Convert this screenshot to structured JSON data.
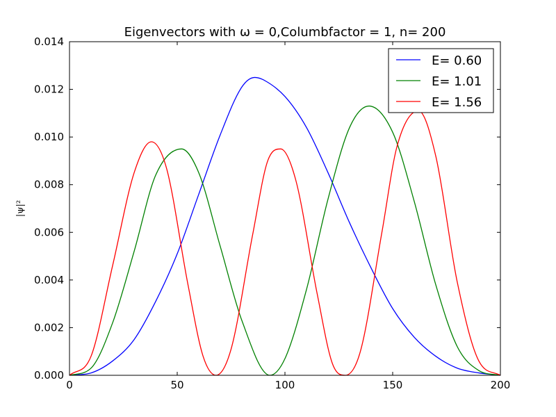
{
  "chart_data": {
    "type": "line",
    "title": "Eigenvectors with ω = 0,Columbfactor = 1, n= 200",
    "xlabel": "",
    "ylabel": "|ψ|²",
    "xlim": [
      0,
      200
    ],
    "ylim": [
      0,
      0.014
    ],
    "x_ticks": [
      "0",
      "50",
      "100",
      "150",
      "200"
    ],
    "y_ticks": [
      "0.000",
      "0.002",
      "0.004",
      "0.006",
      "0.008",
      "0.010",
      "0.012",
      "0.014"
    ],
    "legend_position": "top-right",
    "grid": false,
    "series": [
      {
        "name": "E= 0.60",
        "color": "#0000ff",
        "x": [
          0,
          10,
          20,
          30,
          40,
          50,
          60,
          70,
          80,
          86,
          90,
          100,
          110,
          120,
          130,
          140,
          150,
          160,
          170,
          180,
          190,
          200
        ],
        "y": [
          0,
          0.0001,
          0.0006,
          0.0015,
          0.0031,
          0.0051,
          0.0076,
          0.0101,
          0.0121,
          0.0125,
          0.0124,
          0.0117,
          0.0104,
          0.0085,
          0.0064,
          0.0045,
          0.0028,
          0.0016,
          0.0008,
          0.0003,
          0.0001,
          0
        ]
      },
      {
        "name": "E= 1.01",
        "color": "#008000",
        "x": [
          0,
          10,
          20,
          30,
          40,
          52,
          60,
          70,
          80,
          93,
          100,
          110,
          120,
          130,
          139,
          150,
          160,
          170,
          180,
          190,
          200
        ],
        "y": [
          0,
          0.0003,
          0.0022,
          0.0052,
          0.0084,
          0.0095,
          0.0085,
          0.0054,
          0.0023,
          0,
          0.0007,
          0.0036,
          0.0074,
          0.0104,
          0.0113,
          0.0102,
          0.0073,
          0.0038,
          0.0012,
          0.0002,
          0
        ]
      },
      {
        "name": "E= 1.56",
        "color": "#ff0000",
        "x": [
          0,
          10,
          20,
          30,
          38,
          45,
          55,
          62,
          68,
          75,
          85,
          92,
          98,
          105,
          115,
          122,
          128,
          135,
          145,
          152,
          162,
          170,
          180,
          190,
          200
        ],
        "y": [
          0,
          0.0008,
          0.0046,
          0.0085,
          0.0098,
          0.0087,
          0.0038,
          0.0008,
          0,
          0.0011,
          0.0059,
          0.009,
          0.0095,
          0.0082,
          0.0034,
          0.0005,
          0,
          0.001,
          0.006,
          0.0096,
          0.0111,
          0.0092,
          0.0039,
          0.0006,
          0
        ]
      }
    ]
  }
}
